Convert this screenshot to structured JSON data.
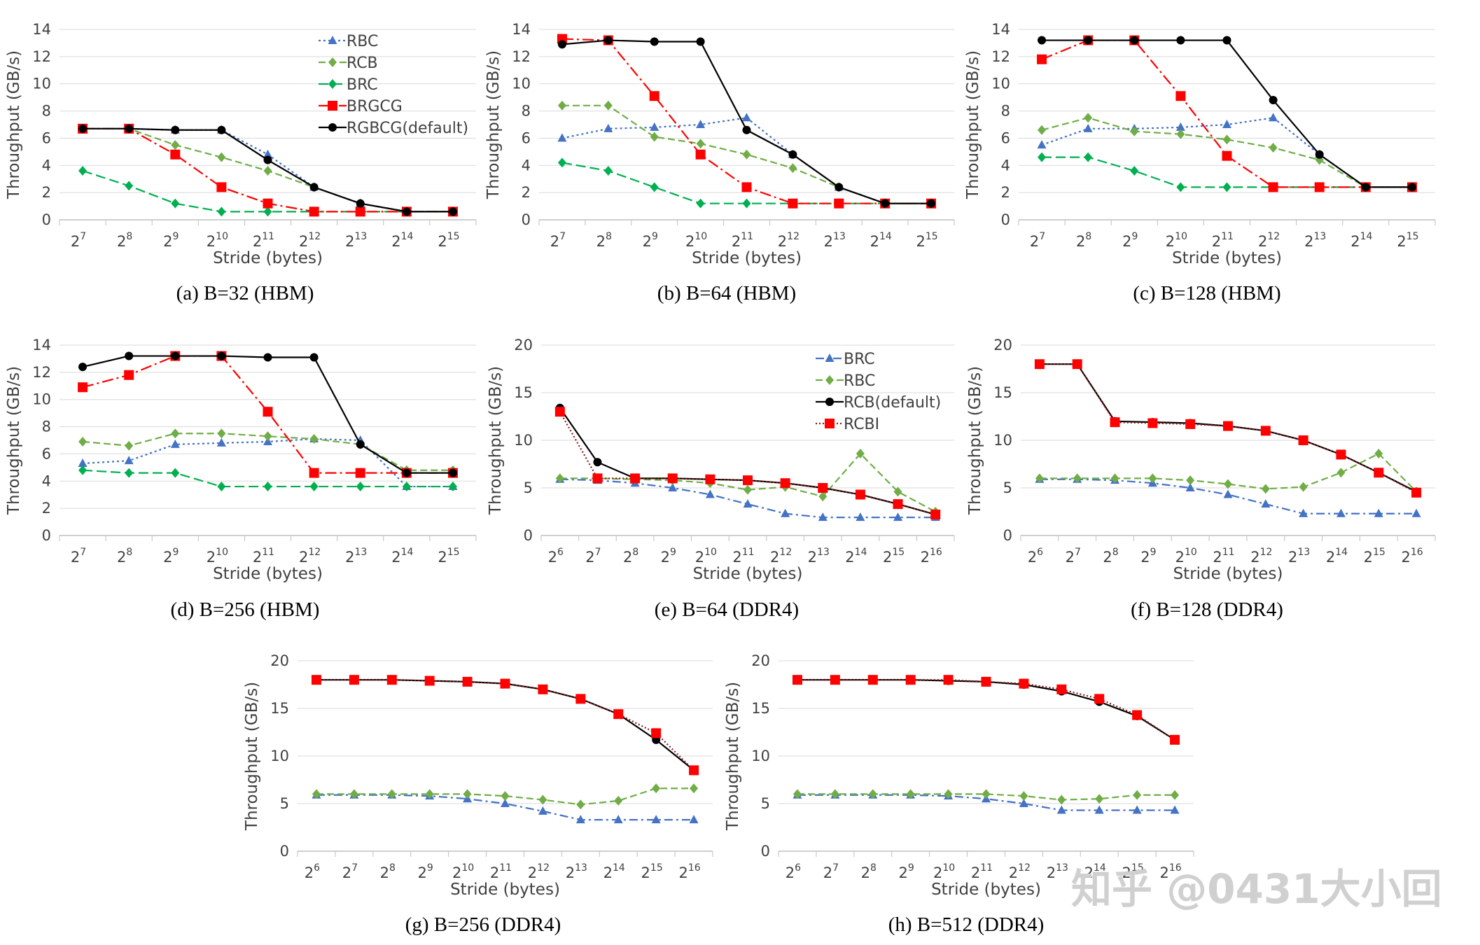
{
  "colors": {
    "RBC": "#4472C4",
    "RCB": "#70AD47",
    "BRC": "#00B050",
    "BRGCG": "#FF0000",
    "RGBCG": "#000000",
    "BRC_ddr": "#4472C4",
    "RBC_ddr": "#70AD47",
    "RCB_ddr": "#000000",
    "RCBI": "#FF0000",
    "RCBI_line": "#8B1A1A",
    "grid": "#d9d9d9",
    "axis": "#bfbfbf"
  },
  "watermark": "知乎 @0431大小回",
  "chart_data": [
    {
      "id": "a",
      "type": "line",
      "caption": "(a) B=32 (HBM)",
      "xlabel": "Stride (bytes)",
      "ylabel": "Throughput (GB/s)",
      "x_exponents": [
        "7",
        "8",
        "9",
        "10",
        "11",
        "12",
        "13",
        "14",
        "15"
      ],
      "ylim": [
        0,
        14
      ],
      "yticks": [
        "0",
        "2",
        "4",
        "6",
        "8",
        "10",
        "12",
        "14"
      ],
      "legend": true,
      "series": [
        {
          "name": "RBC",
          "style": "RBC",
          "values": [
            6.7,
            6.7,
            6.6,
            6.6,
            4.8,
            2.4,
            1.2,
            0.6,
            0.6
          ]
        },
        {
          "name": "RCB",
          "style": "RCB",
          "values": [
            6.7,
            6.7,
            5.5,
            4.6,
            3.6,
            2.4,
            1.2,
            0.6,
            0.6
          ]
        },
        {
          "name": "BRC",
          "style": "BRC",
          "values": [
            3.6,
            2.5,
            1.2,
            0.6,
            0.6,
            0.6,
            0.6,
            0.6,
            0.6
          ]
        },
        {
          "name": "BRGCG",
          "style": "BRGCG",
          "values": [
            6.7,
            6.7,
            4.8,
            2.4,
            1.2,
            0.6,
            0.6,
            0.6,
            0.6
          ]
        },
        {
          "name": "RGBCG(default)",
          "style": "RGBCG",
          "values": [
            6.7,
            6.7,
            6.6,
            6.6,
            4.4,
            2.4,
            1.2,
            0.6,
            0.6
          ]
        }
      ]
    },
    {
      "id": "b",
      "type": "line",
      "caption": "(b) B=64 (HBM)",
      "xlabel": "Stride (bytes)",
      "ylabel": "Throughput (GB/s)",
      "x_exponents": [
        "7",
        "8",
        "9",
        "10",
        "11",
        "12",
        "13",
        "14",
        "15"
      ],
      "ylim": [
        0,
        14
      ],
      "yticks": [
        "0",
        "2",
        "4",
        "6",
        "8",
        "10",
        "12",
        "14"
      ],
      "legend": false,
      "series": [
        {
          "name": "RBC",
          "style": "RBC",
          "values": [
            6.0,
            6.7,
            6.8,
            7.0,
            7.5,
            4.8,
            2.4,
            1.2,
            1.2
          ]
        },
        {
          "name": "RCB",
          "style": "RCB",
          "values": [
            8.4,
            8.4,
            6.1,
            5.6,
            4.8,
            3.8,
            2.4,
            1.2,
            1.2
          ]
        },
        {
          "name": "BRC",
          "style": "BRC",
          "values": [
            4.2,
            3.6,
            2.4,
            1.2,
            1.2,
            1.2,
            1.2,
            1.2,
            1.2
          ]
        },
        {
          "name": "BRGCG",
          "style": "BRGCG",
          "values": [
            13.3,
            13.2,
            9.1,
            4.8,
            2.4,
            1.2,
            1.2,
            1.2,
            1.2
          ]
        },
        {
          "name": "RGBCG(default)",
          "style": "RGBCG",
          "values": [
            12.9,
            13.2,
            13.1,
            13.1,
            6.6,
            4.8,
            2.4,
            1.2,
            1.2
          ]
        }
      ]
    },
    {
      "id": "c",
      "type": "line",
      "caption": "(c) B=128 (HBM)",
      "xlabel": "Stride (bytes)",
      "ylabel": "Throughput (GB/s)",
      "x_exponents": [
        "7",
        "8",
        "9",
        "10",
        "11",
        "12",
        "13",
        "14",
        "15"
      ],
      "ylim": [
        0,
        14
      ],
      "yticks": [
        "0",
        "2",
        "4",
        "6",
        "8",
        "10",
        "12",
        "14"
      ],
      "legend": false,
      "series": [
        {
          "name": "RBC",
          "style": "RBC",
          "values": [
            5.5,
            6.7,
            6.7,
            6.8,
            7.0,
            7.5,
            4.8,
            2.4,
            2.4
          ]
        },
        {
          "name": "RCB",
          "style": "RCB",
          "values": [
            6.6,
            7.5,
            6.5,
            6.3,
            5.9,
            5.3,
            4.4,
            2.4,
            2.4
          ]
        },
        {
          "name": "BRC",
          "style": "BRC",
          "values": [
            4.6,
            4.6,
            3.6,
            2.4,
            2.4,
            2.4,
            2.4,
            2.4,
            2.4
          ]
        },
        {
          "name": "BRGCG",
          "style": "BRGCG",
          "values": [
            11.8,
            13.2,
            13.2,
            9.1,
            4.7,
            2.4,
            2.4,
            2.4,
            2.4
          ]
        },
        {
          "name": "RGBCG(default)",
          "style": "RGBCG",
          "values": [
            13.2,
            13.2,
            13.2,
            13.2,
            13.2,
            8.8,
            4.8,
            2.4,
            2.4
          ]
        }
      ]
    },
    {
      "id": "d",
      "type": "line",
      "caption": "(d) B=256 (HBM)",
      "xlabel": "Stride (bytes)",
      "ylabel": "Throughput (GB/s)",
      "x_exponents": [
        "7",
        "8",
        "9",
        "10",
        "11",
        "12",
        "13",
        "14",
        "15"
      ],
      "ylim": [
        0,
        14
      ],
      "yticks": [
        "0",
        "2",
        "4",
        "6",
        "8",
        "10",
        "12",
        "14"
      ],
      "legend": false,
      "series": [
        {
          "name": "RBC",
          "style": "RBC",
          "values": [
            5.3,
            5.5,
            6.7,
            6.8,
            6.9,
            7.1,
            7.0,
            3.6,
            3.6
          ]
        },
        {
          "name": "RCB",
          "style": "RCB",
          "values": [
            6.9,
            6.6,
            7.5,
            7.5,
            7.3,
            7.1,
            6.7,
            4.8,
            4.8
          ]
        },
        {
          "name": "BRC",
          "style": "BRC",
          "values": [
            4.8,
            4.6,
            4.6,
            3.6,
            3.6,
            3.6,
            3.6,
            3.6,
            3.6
          ]
        },
        {
          "name": "BRGCG",
          "style": "BRGCG",
          "values": [
            10.9,
            11.8,
            13.2,
            13.2,
            9.1,
            4.6,
            4.6,
            4.6,
            4.6
          ]
        },
        {
          "name": "RGBCG(default)",
          "style": "RGBCG",
          "values": [
            12.4,
            13.2,
            13.2,
            13.2,
            13.1,
            13.1,
            6.7,
            4.6,
            4.6
          ]
        }
      ]
    },
    {
      "id": "e",
      "type": "line",
      "caption": "(e) B=64 (DDR4)",
      "xlabel": "Stride (bytes)",
      "ylabel": "Throughput (GB/s)",
      "x_exponents": [
        "6",
        "7",
        "8",
        "9",
        "10",
        "11",
        "12",
        "13",
        "14",
        "15",
        "16"
      ],
      "ylim": [
        0,
        20
      ],
      "yticks": [
        "0",
        "5",
        "10",
        "15",
        "20"
      ],
      "legend": true,
      "series": [
        {
          "name": "BRC",
          "style": "BRC_ddr",
          "values": [
            5.9,
            5.8,
            5.5,
            5.0,
            4.3,
            3.3,
            2.3,
            1.9,
            1.9,
            1.9,
            1.9
          ]
        },
        {
          "name": "RBC",
          "style": "RBC_ddr",
          "values": [
            6.0,
            6.0,
            5.9,
            5.8,
            5.5,
            4.8,
            5.1,
            4.1,
            8.6,
            4.6,
            2.5
          ]
        },
        {
          "name": "RCB(default)",
          "style": "RCB_ddr",
          "values": [
            13.4,
            7.7,
            6.0,
            6.0,
            5.9,
            5.8,
            5.5,
            5.0,
            4.3,
            3.3,
            2.2
          ]
        },
        {
          "name": "RCBI",
          "style": "RCBI",
          "values": [
            13.0,
            6.0,
            6.0,
            6.0,
            5.9,
            5.8,
            5.5,
            5.0,
            4.3,
            3.3,
            2.2
          ]
        }
      ]
    },
    {
      "id": "f",
      "type": "line",
      "caption": "(f) B=128 (DDR4)",
      "xlabel": "Stride (bytes)",
      "ylabel": "Throughput (GB/s)",
      "x_exponents": [
        "6",
        "7",
        "8",
        "9",
        "10",
        "11",
        "12",
        "13",
        "14",
        "15",
        "16"
      ],
      "ylim": [
        0,
        20
      ],
      "yticks": [
        "0",
        "5",
        "10",
        "15",
        "20"
      ],
      "legend": false,
      "series": [
        {
          "name": "BRC",
          "style": "BRC_ddr",
          "values": [
            5.9,
            5.9,
            5.8,
            5.5,
            5.0,
            4.3,
            3.3,
            2.3,
            2.3,
            2.3,
            2.3
          ]
        },
        {
          "name": "RBC",
          "style": "RBC_ddr",
          "values": [
            6.0,
            6.0,
            6.0,
            6.0,
            5.8,
            5.4,
            4.9,
            5.1,
            6.6,
            8.6,
            4.6
          ]
        },
        {
          "name": "RCB(default)",
          "style": "RCB_ddr",
          "values": [
            18.0,
            18.0,
            12.0,
            11.9,
            11.8,
            11.5,
            11.0,
            10.0,
            8.5,
            6.6,
            4.6
          ]
        },
        {
          "name": "RCBI",
          "style": "RCBI",
          "values": [
            18.0,
            18.0,
            11.9,
            11.8,
            11.7,
            11.5,
            11.0,
            10.0,
            8.5,
            6.6,
            4.5
          ]
        }
      ]
    },
    {
      "id": "g",
      "type": "line",
      "caption": "(g) B=256 (DDR4)",
      "xlabel": "Stride (bytes)",
      "ylabel": "Throughput (GB/s)",
      "x_exponents": [
        "6",
        "7",
        "8",
        "9",
        "10",
        "11",
        "12",
        "13",
        "14",
        "15",
        "16"
      ],
      "ylim": [
        0,
        20
      ],
      "yticks": [
        "0",
        "5",
        "10",
        "15",
        "20"
      ],
      "legend": false,
      "series": [
        {
          "name": "BRC",
          "style": "BRC_ddr",
          "values": [
            5.9,
            5.9,
            5.9,
            5.8,
            5.5,
            5.0,
            4.2,
            3.3,
            3.3,
            3.3,
            3.3
          ]
        },
        {
          "name": "RBC",
          "style": "RBC_ddr",
          "values": [
            6.0,
            6.0,
            6.0,
            6.0,
            6.0,
            5.8,
            5.4,
            4.9,
            5.3,
            6.6,
            6.6
          ]
        },
        {
          "name": "RCB(default)",
          "style": "RCB_ddr",
          "values": [
            18.0,
            18.0,
            18.0,
            17.9,
            17.8,
            17.6,
            17.0,
            16.0,
            14.4,
            11.7,
            8.5
          ]
        },
        {
          "name": "RCBI",
          "style": "RCBI",
          "values": [
            18.0,
            18.0,
            18.0,
            17.9,
            17.8,
            17.6,
            17.0,
            16.0,
            14.4,
            12.4,
            8.5
          ]
        }
      ]
    },
    {
      "id": "h",
      "type": "line",
      "caption": "(h) B=512 (DDR4)",
      "xlabel": "Stride (bytes)",
      "ylabel": "Throughput (GB/s)",
      "x_exponents": [
        "6",
        "7",
        "8",
        "9",
        "10",
        "11",
        "12",
        "13",
        "14",
        "15",
        "16"
      ],
      "ylim": [
        0,
        20
      ],
      "yticks": [
        "0",
        "5",
        "10",
        "15",
        "20"
      ],
      "legend": false,
      "series": [
        {
          "name": "BRC",
          "style": "BRC_ddr",
          "values": [
            5.9,
            5.9,
            5.9,
            5.9,
            5.8,
            5.5,
            5.0,
            4.3,
            4.3,
            4.3,
            4.3
          ]
        },
        {
          "name": "RBC",
          "style": "RBC_ddr",
          "values": [
            6.0,
            6.0,
            6.0,
            6.0,
            6.0,
            6.0,
            5.8,
            5.4,
            5.5,
            5.9,
            5.9
          ]
        },
        {
          "name": "RCB(default)",
          "style": "RCB_ddr",
          "values": [
            18.0,
            18.0,
            18.0,
            18.0,
            17.9,
            17.8,
            17.5,
            16.8,
            15.7,
            14.2,
            11.7
          ]
        },
        {
          "name": "RCBI",
          "style": "RCBI",
          "values": [
            18.0,
            18.0,
            18.0,
            18.0,
            18.0,
            17.8,
            17.6,
            17.0,
            16.0,
            14.3,
            11.7
          ]
        }
      ]
    }
  ]
}
